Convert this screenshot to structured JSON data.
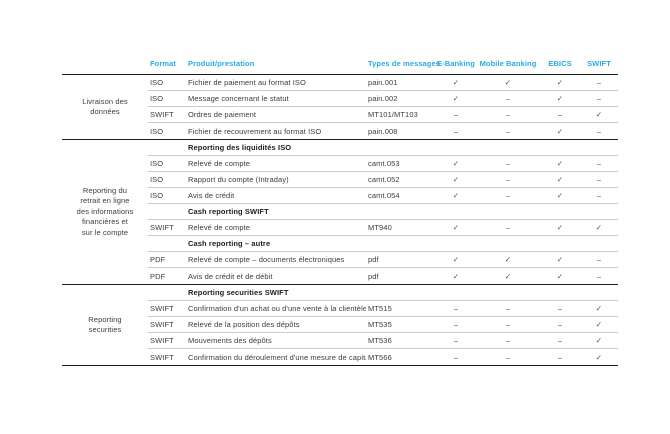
{
  "accent_color": "#29ABE2",
  "line_colors": {
    "group_separator": "#1D1D1B",
    "row_separator": "#CBCBCB"
  },
  "symbols": {
    "available": "✓",
    "not_available": "–"
  },
  "header": {
    "columns": [
      "Format",
      "Produit/prestation",
      "Types de messages",
      "E-Banking",
      "Mobile Banking",
      "EBICS",
      "SWIFT"
    ]
  },
  "groups": [
    {
      "label": "Livraison des\ndonnées",
      "rows": [
        {
          "kind": "data",
          "format": "ISO",
          "product": "Fichier de paiement au format ISO",
          "message": "pain.001",
          "marks": [
            "✓",
            "✓",
            "✓",
            "–"
          ]
        },
        {
          "kind": "data",
          "format": "ISO",
          "product": "Message concernant le statut",
          "message": "pain.002",
          "marks": [
            "✓",
            "–",
            "✓",
            "–"
          ]
        },
        {
          "kind": "data",
          "format": "SWIFT",
          "product": "Ordres de paiement",
          "message": "MT101/MT103",
          "marks": [
            "–",
            "–",
            "–",
            "✓"
          ]
        },
        {
          "kind": "data",
          "format": "ISO",
          "product": "Fichier de recouvrement au format ISO",
          "message": "pain.008",
          "marks": [
            "–",
            "–",
            "✓",
            "–"
          ]
        }
      ]
    },
    {
      "label": "Reporting du\nretrait en ligne\ndes informations\nfinancières et\nsur le compte",
      "rows": [
        {
          "kind": "sub",
          "product": "Reporting des liquidités ISO"
        },
        {
          "kind": "data",
          "format": "ISO",
          "product": "Relevé de compte",
          "message": "camt.053",
          "marks": [
            "✓",
            "–",
            "✓",
            "–"
          ]
        },
        {
          "kind": "data",
          "format": "ISO",
          "product": "Rapport du compte (Intraday)",
          "message": "camt.052",
          "marks": [
            "✓",
            "–",
            "✓",
            "–"
          ]
        },
        {
          "kind": "data",
          "format": "ISO",
          "product": "Avis de crédit",
          "message": "camt.054",
          "marks": [
            "✓",
            "–",
            "✓",
            "–"
          ]
        },
        {
          "kind": "sub",
          "product": "Cash reporting SWIFT"
        },
        {
          "kind": "data",
          "format": "SWIFT",
          "product": "Relevé de compte",
          "message": "MT940",
          "marks": [
            "✓",
            "–",
            "✓",
            "✓"
          ]
        },
        {
          "kind": "sub",
          "product": "Cash reporting – autre"
        },
        {
          "kind": "data",
          "format": "PDF",
          "product": "Relevé de compte – documents électroniques",
          "message": "pdf",
          "marks": [
            "✓",
            "✓",
            "✓",
            "–"
          ]
        },
        {
          "kind": "data",
          "format": "PDF",
          "product": "Avis de crédit et de débit",
          "message": "pdf",
          "marks": [
            "✓",
            "✓",
            "✓",
            "–"
          ]
        }
      ]
    },
    {
      "label": "Reporting\nsecurities",
      "rows": [
        {
          "kind": "sub",
          "product": "Reporting securities SWIFT"
        },
        {
          "kind": "data",
          "format": "SWIFT",
          "product": "Confirmation d'un achat ou d'une vente à la clientèle",
          "message": "MT515",
          "marks": [
            "–",
            "–",
            "–",
            "✓"
          ]
        },
        {
          "kind": "data",
          "format": "SWIFT",
          "product": "Relevé de la position des dépôts",
          "message": "MT535",
          "marks": [
            "–",
            "–",
            "–",
            "✓"
          ]
        },
        {
          "kind": "data",
          "format": "SWIFT",
          "product": "Mouvements des dépôts",
          "message": "MT536",
          "marks": [
            "–",
            "–",
            "–",
            "✓"
          ]
        },
        {
          "kind": "data",
          "format": "SWIFT",
          "product": "Confirmation du déroulement d'une mesure de capital",
          "message": "MT566",
          "marks": [
            "–",
            "–",
            "–",
            "✓"
          ]
        }
      ]
    }
  ]
}
